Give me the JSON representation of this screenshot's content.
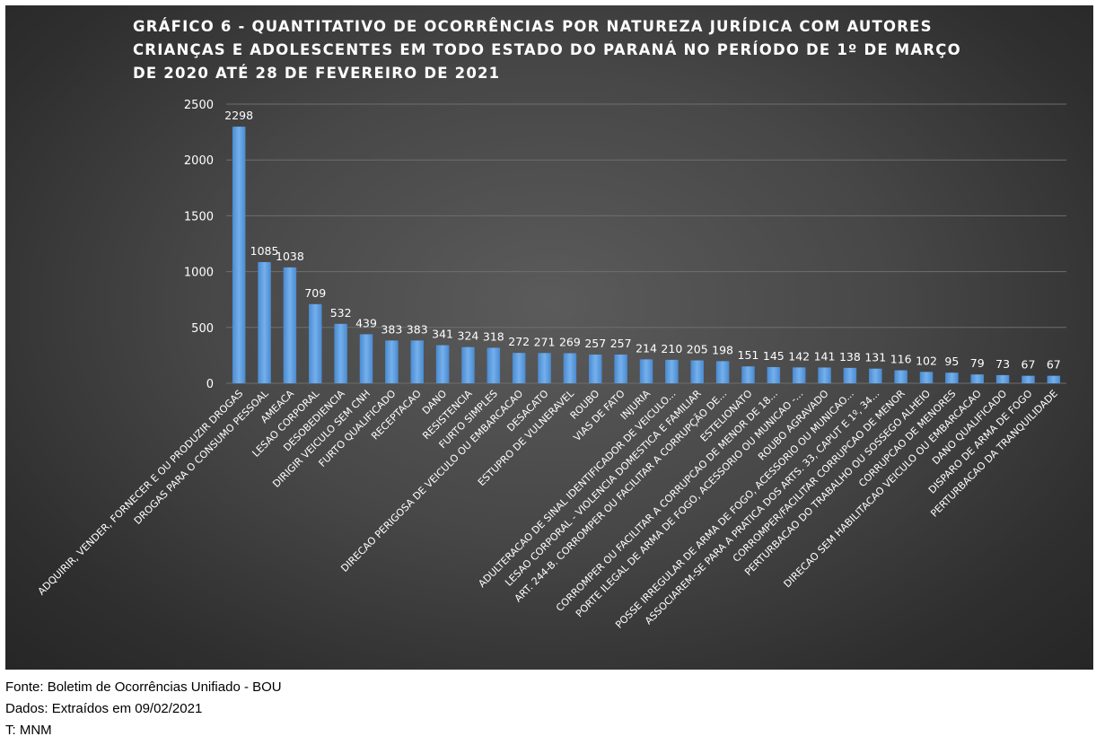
{
  "chart_data": {
    "type": "bar",
    "title": "GRÁFICO 6 - QUANTITATIVO DE OCORRÊNCIAS POR NATUREZA JURÍDICA COM AUTORES CRIANÇAS E ADOLESCENTES EM TODO ESTADO DO PARANÁ NO PERÍODO DE 1º DE MARÇO DE 2020 ATÉ 28 DE FEVEREIRO DE 2021",
    "xlabel": "",
    "ylabel": "",
    "ylim": [
      0,
      2500
    ],
    "yticks": [
      "0",
      "500",
      "1000",
      "1500",
      "2000",
      "2500"
    ],
    "grid": true,
    "legend": "none",
    "bar_color": "#5b9bd5",
    "background": "#404040",
    "categories": [
      "ADQUIRIR, VENDER, FORNECER E OU PRODUZIR DROGAS",
      "DROGAS PARA O CONSUMO PESSOAL",
      "AMEACA",
      "LESAO CORPORAL",
      "DESOBEDIENCIA",
      "DIRIGIR VEICULO SEM CNH",
      "FURTO QUALIFICADO",
      "RECEPTACAO",
      "DANO",
      "RESISTENCIA",
      "FURTO SIMPLES",
      "DIRECAO PERIGOSA DE VEICULO OU EMBARCACAO",
      "DESACATO",
      "ESTUPRO DE VULNERAVEL",
      "ROUBO",
      "VIAS DE FATO",
      "INJURIA",
      "ADULTERACAO DE SINAL IDENTIFICADOR DE VEICULO...",
      "LESAO CORPORAL - VIOLENCIA DOMESTICA E FAMILIAR",
      "ART. 244-B. CORROMPER OU FACILITAR A CORRUPÇÃO DE...",
      "ESTELIONATO",
      "CORROMPER OU FACILITAR A CORRUPCAO DE MENOR DE 18...",
      "PORTE ILEGAL DE ARMA DE FOGO, ACESSORIO OU MUNICAO -...",
      "ROUBO AGRAVADO",
      "POSSE IRREGULAR DE ARMA DE FOGO, ACESSORIO OU MUNICAO...",
      "ASSOCIAREM-SE PARA A PRATICA DOS ARTS. 33, CAPUT E 1º, 34...",
      "CORROMPER/FACILITAR CORRUPCAO DE MENOR",
      "PERTURBACAO DO TRABALHO OU SOSSEGO ALHEIO",
      "CORRUPCAO DE MENORES",
      "DIRECAO SEM HABILITACAO VEICULO OU EMBARCACAO",
      "DANO QUALIFICADO",
      "DISPARO DE ARMA DE FOGO",
      "PERTURBACAO DA TRANQUILIDADE"
    ],
    "values": [
      2298,
      1085,
      1038,
      709,
      532,
      439,
      383,
      383,
      341,
      324,
      318,
      272,
      271,
      269,
      257,
      257,
      214,
      210,
      205,
      198,
      151,
      145,
      142,
      141,
      138,
      131,
      116,
      102,
      95,
      79,
      73,
      67,
      67
    ]
  },
  "footer": {
    "source": "Fonte: Boletim de Ocorrências Unifiado - BOU",
    "extracted": "Dados: Extraídos em 09/02/2021",
    "author": "T: MNM"
  }
}
